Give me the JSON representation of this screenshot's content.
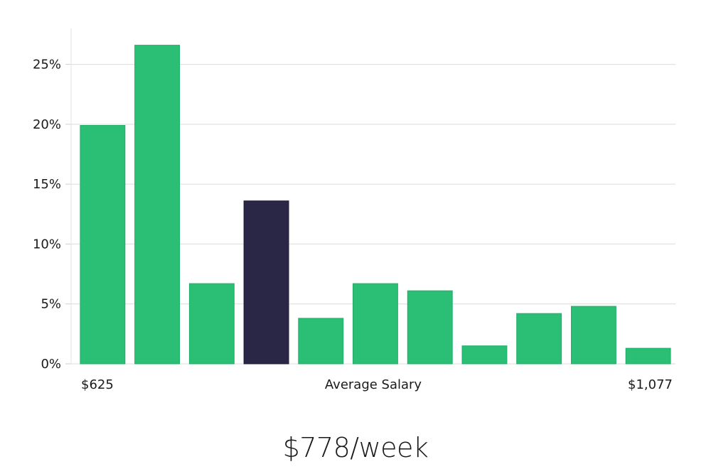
{
  "chart_data": {
    "type": "bar",
    "values": [
      19.9,
      26.6,
      6.7,
      13.6,
      3.8,
      6.7,
      6.1,
      1.5,
      4.2,
      4.8,
      1.3
    ],
    "highlight_index": 3,
    "ylim": [
      0,
      28
    ],
    "yticks": [
      0,
      5,
      10,
      15,
      20,
      25
    ],
    "ytick_labels": [
      "0%",
      "5%",
      "10%",
      "15%",
      "20%",
      "25%"
    ],
    "x_min_label": "$625",
    "x_max_label": "$1,077",
    "xlabel": "Average Salary",
    "grid": true,
    "colors": {
      "bar": "#2bbf76",
      "highlight": "#2a2646",
      "grid": "#dcdcdc",
      "axis": "#e4e4e4"
    }
  },
  "headline": "$778/week"
}
